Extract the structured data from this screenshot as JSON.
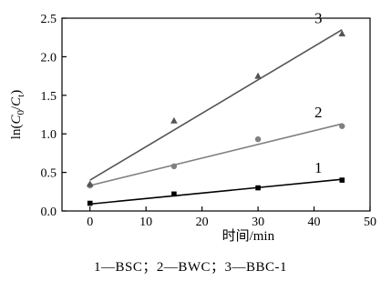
{
  "chart_data": {
    "type": "scatter",
    "xlabel": "时间/min",
    "ylabel_parts": [
      "ln(",
      "C",
      "0",
      "/",
      "C",
      "t",
      ")"
    ],
    "xlim": [
      -5,
      50
    ],
    "ylim": [
      0,
      2.5
    ],
    "xticks": [
      "0",
      "10",
      "20",
      "30",
      "40",
      "50"
    ],
    "yticks": [
      "0.0",
      "0.5",
      "1.0",
      "1.5",
      "2.0",
      "2.5"
    ],
    "grid": false,
    "series": [
      {
        "name": "1",
        "marker": "square",
        "color": "#000000",
        "x": [
          0,
          15,
          30,
          45
        ],
        "y": [
          0.1,
          0.22,
          0.3,
          0.4
        ],
        "fit": [
          [
            0,
            0.09
          ],
          [
            45,
            0.41
          ]
        ]
      },
      {
        "name": "2",
        "marker": "circle",
        "color": "#808080",
        "x": [
          0,
          15,
          30,
          45
        ],
        "y": [
          0.33,
          0.58,
          0.93,
          1.1
        ],
        "fit": [
          [
            0,
            0.33
          ],
          [
            45,
            1.13
          ]
        ]
      },
      {
        "name": "3",
        "marker": "triangle",
        "color": "#555555",
        "x": [
          0,
          15,
          30,
          45
        ],
        "y": [
          0.35,
          1.17,
          1.75,
          2.3
        ],
        "fit": [
          [
            0,
            0.4
          ],
          [
            45,
            2.35
          ]
        ]
      }
    ],
    "caption": "1—BSC；2—BWC；3—BBC-1"
  }
}
